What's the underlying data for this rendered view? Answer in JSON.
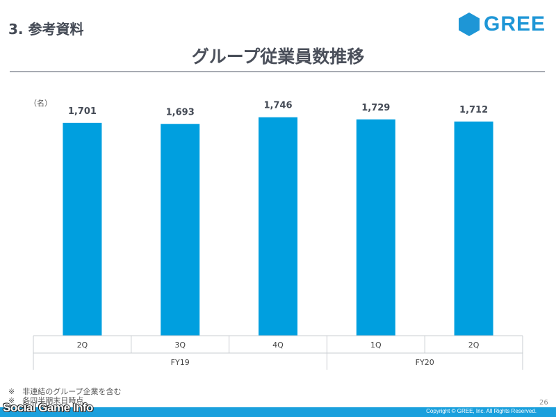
{
  "header": {
    "section_title": "3. 参考資料",
    "logo_text": "GREE",
    "page_title": "グループ従業員数推移"
  },
  "colors": {
    "bar": "#009fdf",
    "brand": "#1e96d6",
    "footer": "#1aa0dd"
  },
  "icons": {
    "logo": "gree-hexagon-icon"
  },
  "chart_data": {
    "type": "bar",
    "unit_label": "（名）",
    "categories": [
      "2Q",
      "3Q",
      "4Q",
      "1Q",
      "2Q"
    ],
    "values": [
      1701,
      1693,
      1746,
      1729,
      1712
    ],
    "data_labels": [
      "1,701",
      "1,693",
      "1,746",
      "1,729",
      "1,712"
    ],
    "groups": [
      {
        "label": "FY19",
        "span": 3
      },
      {
        "label": "FY20",
        "span": 2
      }
    ],
    "ylim": [
      0,
      1850
    ],
    "grid": false,
    "legend": "none"
  },
  "footnotes": [
    "※　非連結のグループ企業を含む",
    "※　各四半期末日時点"
  ],
  "page_number": "26",
  "copyright": "Copyright © GREE, Inc. All Rights Reserved.",
  "watermark": "Social Game Info"
}
